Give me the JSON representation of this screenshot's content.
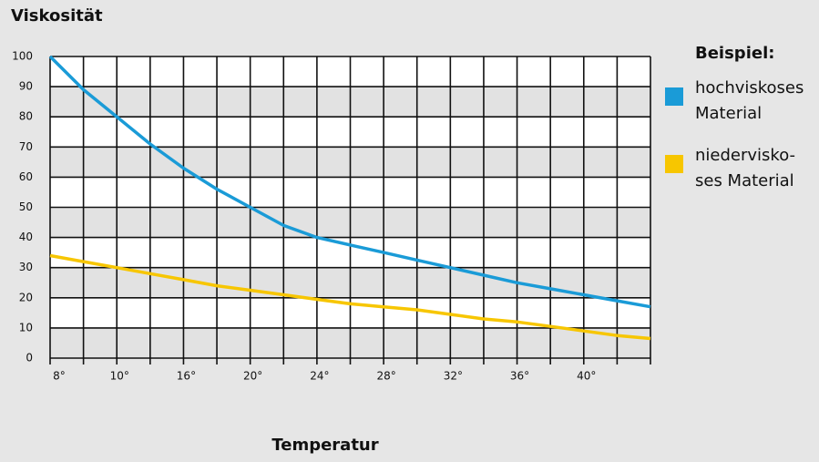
{
  "chart_data": {
    "type": "line",
    "title": "Viskosität",
    "x_label": "Temperatur",
    "legend_title": "Beispiel:",
    "xlim": [
      0,
      18
    ],
    "xticks": [
      {
        "value": 0,
        "label": "8°"
      },
      {
        "value": 1,
        "label": null
      },
      {
        "value": 2,
        "label": "10°"
      },
      {
        "value": 3,
        "label": null
      },
      {
        "value": 4,
        "label": "16°"
      },
      {
        "value": 5,
        "label": null
      },
      {
        "value": 6,
        "label": "20°"
      },
      {
        "value": 7,
        "label": null
      },
      {
        "value": 8,
        "label": "24°"
      },
      {
        "value": 9,
        "label": null
      },
      {
        "value": 10,
        "label": "28°"
      },
      {
        "value": 11,
        "label": null
      },
      {
        "value": 12,
        "label": "32°"
      },
      {
        "value": 13,
        "label": null
      },
      {
        "value": 14,
        "label": "36°"
      },
      {
        "value": 15,
        "label": null
      },
      {
        "value": 16,
        "label": "40°"
      },
      {
        "value": 17,
        "label": null
      },
      {
        "value": 18,
        "label": null
      }
    ],
    "ylim": [
      0,
      100
    ],
    "yticks": [
      0,
      10,
      20,
      30,
      40,
      50,
      60,
      70,
      80,
      90,
      100
    ],
    "grid": true,
    "legend": "right",
    "x": [
      0,
      1,
      2,
      3,
      4,
      5,
      6,
      7,
      8,
      9,
      10,
      11,
      12,
      13,
      14,
      15,
      16,
      17,
      18
    ],
    "series": [
      {
        "name": "hochviskoses\nMaterial",
        "color": "#1a9bd7",
        "values": [
          100,
          89,
          80,
          71,
          63,
          56,
          50,
          44,
          40,
          37.5,
          35,
          32.5,
          30,
          27.5,
          25,
          23,
          21,
          19,
          17
        ]
      },
      {
        "name": "niedervisko-\nses Material",
        "color": "#f7c600",
        "values": [
          34,
          32,
          30,
          28,
          26,
          24,
          22.5,
          21,
          19.5,
          18,
          17,
          16,
          14.5,
          13,
          12,
          10.5,
          9,
          7.5,
          6.5
        ]
      }
    ]
  }
}
